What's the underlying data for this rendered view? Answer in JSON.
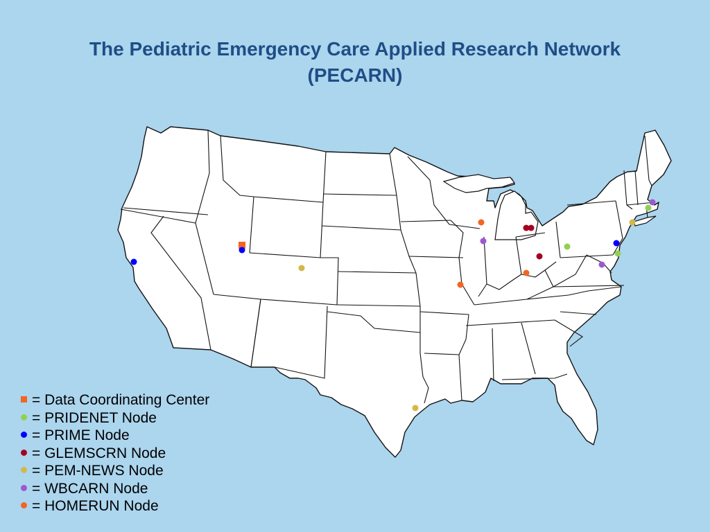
{
  "title": {
    "line1": "The Pediatric Emergency Care Applied Research Network",
    "line2": "(PECARN)"
  },
  "colors": {
    "background": "#acd5ee",
    "title": "#1f4e86",
    "land": "#ffffff",
    "border": "#111111",
    "data_coordinating_center": "#f26522",
    "pridenet": "#92d050",
    "prime": "#0000ff",
    "glemscrn": "#a50021",
    "pem_news": "#d4b84a",
    "wbcarn": "#9b59d0",
    "homerun": "#f26522"
  },
  "legend": [
    {
      "key": "dcc",
      "marker": "square",
      "color": "#f26522",
      "label": "= Data Coordinating Center"
    },
    {
      "key": "pridenet",
      "marker": "dot",
      "color": "#92d050",
      "label": "= PRIDENET Node"
    },
    {
      "key": "prime",
      "marker": "dot",
      "color": "#0000ff",
      "label": "= PRIME Node"
    },
    {
      "key": "glemscrn",
      "marker": "dot",
      "color": "#a50021",
      "label": "= GLEMSCRN Node"
    },
    {
      "key": "pem_news",
      "marker": "dot",
      "color": "#d4b84a",
      "label": "= PEM-NEWS Node"
    },
    {
      "key": "wbcarn",
      "marker": "dot",
      "color": "#9b59d0",
      "label": "= WBCARN Node"
    },
    {
      "key": "homerun",
      "marker": "dot",
      "color": "#f26522",
      "label": "= HOMERUN Node"
    }
  ]
}
